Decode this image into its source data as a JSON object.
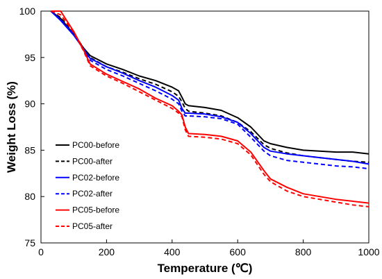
{
  "chart_data": {
    "type": "line",
    "xlabel": "Temperature (℃)",
    "ylabel": "Weight Loss (%)",
    "xlim": [
      0,
      1000
    ],
    "ylim": [
      75,
      100
    ],
    "xticks": [
      0,
      200,
      400,
      600,
      800,
      1000
    ],
    "yticks": [
      75,
      80,
      85,
      90,
      95,
      100
    ],
    "grid": false,
    "legend_position": "bottom-left",
    "series": [
      {
        "name": "PC00-before",
        "color": "#000000",
        "dash": "solid",
        "x": [
          30,
          60,
          100,
          130,
          150,
          200,
          250,
          300,
          350,
          400,
          420,
          430,
          440,
          450,
          500,
          550,
          600,
          640,
          680,
          700,
          750,
          800,
          850,
          900,
          950,
          1000
        ],
        "y": [
          100,
          99.2,
          97.5,
          96.0,
          95.2,
          94.3,
          93.7,
          93.0,
          92.5,
          91.8,
          91.4,
          90.7,
          90.0,
          89.8,
          89.6,
          89.3,
          88.5,
          87.5,
          86.0,
          85.7,
          85.3,
          85.0,
          84.9,
          84.8,
          84.8,
          84.6
        ]
      },
      {
        "name": "PC00-after",
        "color": "#000000",
        "dash": "dashed",
        "x": [
          30,
          60,
          100,
          130,
          150,
          200,
          250,
          300,
          350,
          400,
          420,
          430,
          440,
          450,
          500,
          550,
          600,
          640,
          680,
          700,
          750,
          800,
          850,
          900,
          950,
          1000
        ],
        "y": [
          100,
          99.3,
          97.6,
          96.0,
          95.0,
          94.0,
          93.4,
          92.7,
          92.1,
          91.3,
          90.8,
          90.2,
          89.5,
          89.2,
          89.0,
          88.7,
          88.0,
          87.0,
          85.6,
          85.2,
          84.7,
          84.4,
          84.2,
          84.0,
          83.8,
          83.7
        ]
      },
      {
        "name": "PC02-before",
        "color": "#0000ff",
        "dash": "solid",
        "x": [
          30,
          60,
          100,
          130,
          150,
          200,
          250,
          300,
          350,
          400,
          420,
          430,
          440,
          450,
          500,
          550,
          600,
          640,
          680,
          700,
          750,
          800,
          850,
          900,
          950,
          1000
        ],
        "y": [
          100,
          99.0,
          97.4,
          95.9,
          94.9,
          94.0,
          93.3,
          92.5,
          91.8,
          90.9,
          90.4,
          89.5,
          89.0,
          89.0,
          88.9,
          88.6,
          88.0,
          86.8,
          85.3,
          84.9,
          84.6,
          84.4,
          84.2,
          84.0,
          83.8,
          83.5
        ]
      },
      {
        "name": "PC02-after",
        "color": "#0000ff",
        "dash": "dashed",
        "x": [
          30,
          60,
          100,
          130,
          150,
          200,
          250,
          300,
          350,
          400,
          420,
          430,
          440,
          450,
          500,
          550,
          600,
          640,
          680,
          700,
          750,
          800,
          850,
          900,
          950,
          1000
        ],
        "y": [
          100,
          99.1,
          97.5,
          95.9,
          94.7,
          93.7,
          93.0,
          92.2,
          91.4,
          90.5,
          90.0,
          89.2,
          88.7,
          88.7,
          88.6,
          88.4,
          87.8,
          86.4,
          84.9,
          84.4,
          83.9,
          83.7,
          83.5,
          83.3,
          83.2,
          83.0
        ]
      },
      {
        "name": "PC05-before",
        "color": "#ff0000",
        "dash": "solid",
        "x": [
          30,
          60,
          100,
          130,
          150,
          200,
          250,
          300,
          350,
          400,
          420,
          430,
          440,
          450,
          500,
          550,
          600,
          640,
          680,
          700,
          750,
          800,
          850,
          900,
          950,
          1000
        ],
        "y": [
          100,
          100,
          97.8,
          95.8,
          94.3,
          93.2,
          92.4,
          91.6,
          90.6,
          89.8,
          89.2,
          88.8,
          87.5,
          86.8,
          86.7,
          86.5,
          86.0,
          84.8,
          82.8,
          81.9,
          81.0,
          80.3,
          80.0,
          79.7,
          79.5,
          79.3
        ]
      },
      {
        "name": "PC05-after",
        "color": "#ff0000",
        "dash": "dashed",
        "x": [
          30,
          60,
          100,
          130,
          150,
          200,
          250,
          300,
          350,
          400,
          420,
          430,
          440,
          450,
          500,
          550,
          600,
          640,
          680,
          700,
          750,
          800,
          850,
          900,
          950,
          1000
        ],
        "y": [
          100,
          99.6,
          97.7,
          95.7,
          94.1,
          93.0,
          92.2,
          91.3,
          90.4,
          89.5,
          89.0,
          88.6,
          87.2,
          86.5,
          86.4,
          86.2,
          85.7,
          84.5,
          82.4,
          81.6,
          80.6,
          80.0,
          79.7,
          79.4,
          79.1,
          78.9
        ]
      }
    ]
  }
}
